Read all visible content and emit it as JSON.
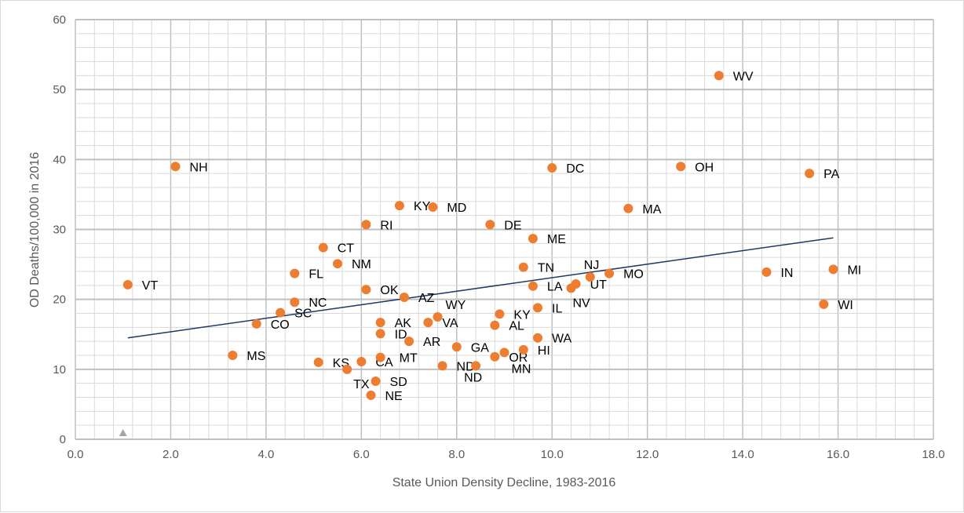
{
  "chart_data": {
    "type": "scatter",
    "title": "",
    "xlabel": "State Union Density Decline, 1983-2016",
    "ylabel": "OD Deaths/100,000 in 2016",
    "xlim": [
      0,
      18
    ],
    "ylim": [
      0,
      60
    ],
    "xticks": [
      "0.0",
      "2.0",
      "4.0",
      "6.0",
      "8.0",
      "10.0",
      "12.0",
      "14.0",
      "16.0",
      "18.0"
    ],
    "yticks": [
      "0",
      "10",
      "20",
      "30",
      "40",
      "50",
      "60"
    ],
    "grid": true,
    "point_color": "#ED7D31",
    "trendline_color": "#1F3864",
    "trendline": {
      "x": [
        1.1,
        15.9
      ],
      "y": [
        14.5,
        28.8
      ]
    },
    "extra_marker": {
      "x": 1.0,
      "y": 0.9,
      "shape": "triangle",
      "color": "#A5A5A5"
    },
    "points": [
      {
        "label": "VT",
        "x": 1.1,
        "y": 22.1
      },
      {
        "label": "NH",
        "x": 2.1,
        "y": 39.0
      },
      {
        "label": "MS",
        "x": 3.3,
        "y": 12.0
      },
      {
        "label": "CO",
        "x": 3.8,
        "y": 16.5
      },
      {
        "label": "SC",
        "x": 4.3,
        "y": 18.1
      },
      {
        "label": "NC",
        "x": 4.6,
        "y": 19.6
      },
      {
        "label": "FL",
        "x": 4.6,
        "y": 23.7
      },
      {
        "label": "CT",
        "x": 5.2,
        "y": 27.4
      },
      {
        "label": "NM",
        "x": 5.5,
        "y": 25.1
      },
      {
        "label": "KS",
        "x": 5.1,
        "y": 11.0
      },
      {
        "label": "TX",
        "x": 5.7,
        "y": 10.0
      },
      {
        "label": "CA",
        "x": 6.0,
        "y": 11.1
      },
      {
        "label": "OK",
        "x": 6.1,
        "y": 21.4
      },
      {
        "label": "RI",
        "x": 6.1,
        "y": 30.7
      },
      {
        "label": "SD",
        "x": 6.3,
        "y": 8.3
      },
      {
        "label": "NE",
        "x": 6.2,
        "y": 6.3
      },
      {
        "label": "AK",
        "x": 6.4,
        "y": 16.7
      },
      {
        "label": "ID",
        "x": 6.4,
        "y": 15.1
      },
      {
        "label": "MT",
        "x": 6.4,
        "y": 11.7
      },
      {
        "label": "KY",
        "x": 6.8,
        "y": 33.4
      },
      {
        "label": "AZ",
        "x": 6.9,
        "y": 20.3
      },
      {
        "label": "AR",
        "x": 7.0,
        "y": 14.0
      },
      {
        "label": "MD",
        "x": 7.5,
        "y": 33.2
      },
      {
        "label": "VA",
        "x": 7.4,
        "y": 16.7
      },
      {
        "label": "WY",
        "x": 7.6,
        "y": 17.5
      },
      {
        "label": "ND",
        "x": 7.7,
        "y": 10.5
      },
      {
        "label": "GA",
        "x": 8.0,
        "y": 13.2
      },
      {
        "label": "ND",
        "x": 8.4,
        "y": 10.5
      },
      {
        "label": "DE",
        "x": 8.7,
        "y": 30.7
      },
      {
        "label": "AL",
        "x": 8.8,
        "y": 16.3
      },
      {
        "label": "OR",
        "x": 8.8,
        "y": 11.8
      },
      {
        "label": "KY",
        "x": 8.9,
        "y": 17.9
      },
      {
        "label": "MN",
        "x": 9.0,
        "y": 12.4
      },
      {
        "label": "HI",
        "x": 9.4,
        "y": 12.8
      },
      {
        "label": "TN",
        "x": 9.4,
        "y": 24.6
      },
      {
        "label": "WA",
        "x": 9.7,
        "y": 14.5
      },
      {
        "label": "IL",
        "x": 9.7,
        "y": 18.8
      },
      {
        "label": "LA",
        "x": 9.6,
        "y": 21.9
      },
      {
        "label": "ME",
        "x": 9.6,
        "y": 28.7
      },
      {
        "label": "DC",
        "x": 10.0,
        "y": 38.8
      },
      {
        "label": "NV",
        "x": 10.4,
        "y": 21.6
      },
      {
        "label": "UT",
        "x": 10.5,
        "y": 22.2
      },
      {
        "label": "NJ",
        "x": 10.8,
        "y": 23.2
      },
      {
        "label": "MO",
        "x": 11.2,
        "y": 23.7
      },
      {
        "label": "MA",
        "x": 11.6,
        "y": 33.0
      },
      {
        "label": "OH",
        "x": 12.7,
        "y": 39.0
      },
      {
        "label": "WV",
        "x": 13.5,
        "y": 52.0
      },
      {
        "label": "IN",
        "x": 14.5,
        "y": 23.9
      },
      {
        "label": "PA",
        "x": 15.4,
        "y": 38.0
      },
      {
        "label": "WI",
        "x": 15.7,
        "y": 19.3
      },
      {
        "label": "MI",
        "x": 15.9,
        "y": 24.3
      }
    ]
  }
}
